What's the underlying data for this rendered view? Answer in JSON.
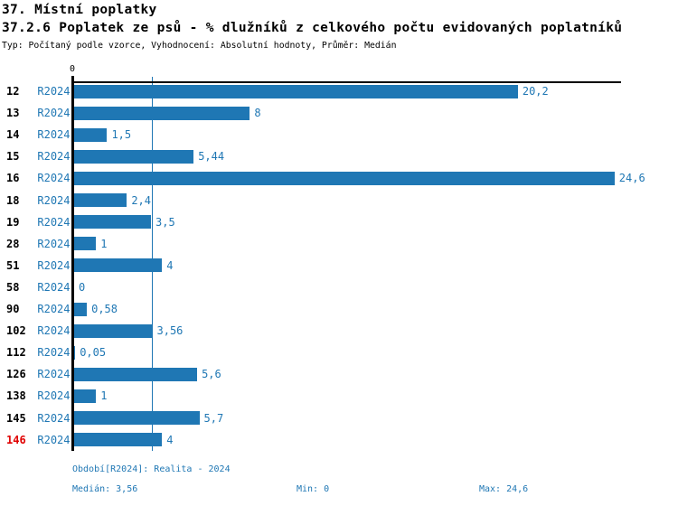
{
  "header": {
    "title1": "37. Místní poplatky",
    "title2": "37.2.6 Poplatek ze psů - % dlužníků z celkového počtu evidovaných poplatníků",
    "meta": "Typ: Počítaný podle vzorce, Vyhodnocení: Absolutní hodnoty, Průměr: Medián"
  },
  "chart_data": {
    "type": "bar",
    "orientation": "horizontal",
    "title": "37.2.6 Poplatek ze psů - % dlužníků z celkového počtu evidovaných poplatníků",
    "period_label": "R2024",
    "categories": [
      "12",
      "13",
      "14",
      "15",
      "16",
      "18",
      "19",
      "28",
      "51",
      "58",
      "90",
      "102",
      "112",
      "126",
      "138",
      "145",
      "146"
    ],
    "values": [
      20.2,
      8,
      1.5,
      5.44,
      24.6,
      2.4,
      3.5,
      1,
      4,
      0,
      0.58,
      3.56,
      0.05,
      5.6,
      1,
      5.7,
      4
    ],
    "value_labels": [
      "20,2",
      "8",
      "1,5",
      "5,44",
      "24,6",
      "2,4",
      "3,5",
      "1",
      "4",
      "0",
      "0,58",
      "3,56",
      "0,05",
      "5,6",
      "1",
      "5,7",
      "4"
    ],
    "highlighted_category": "146",
    "axis": {
      "tick0_label": "0",
      "xlim": [
        0,
        24.9
      ],
      "median_value": 3.56,
      "grid": "median-line-only"
    },
    "legend": "none",
    "bar_color": "#1f77b4",
    "label_color": "#1f77b4",
    "highlight_color": "#e00000",
    "median": 3.56,
    "min": 0,
    "max": 24.6
  },
  "footer": {
    "period_info": "Období[R2024]: Realita - 2024",
    "median_label": "Medián: 3,56",
    "min_label": "Min: 0",
    "max_label": "Max: 24,6"
  }
}
